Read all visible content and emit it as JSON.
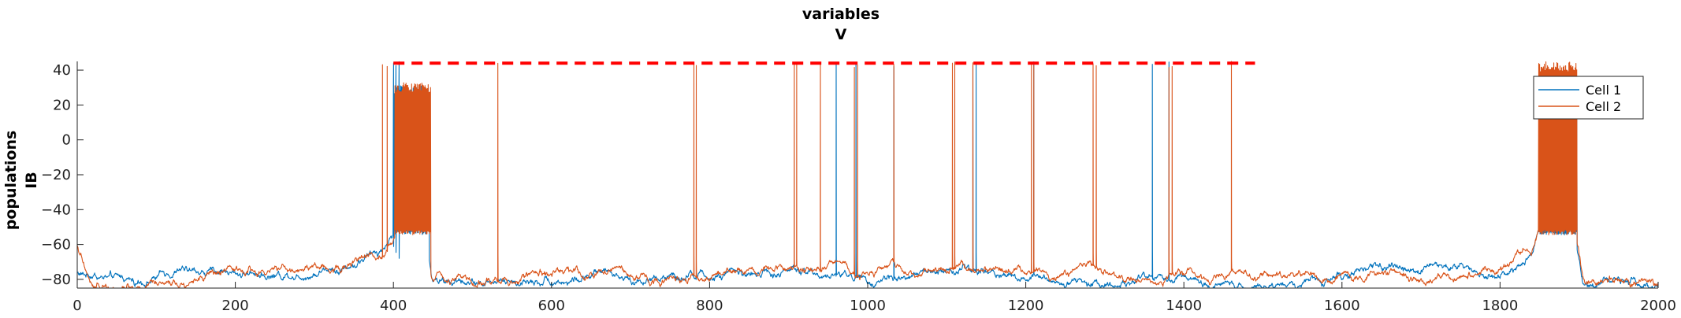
{
  "chart_data": {
    "type": "line",
    "title": [
      "variables",
      "V"
    ],
    "ylabel": [
      "populations",
      "IB"
    ],
    "xlabel": "",
    "xlim": [
      0,
      2000
    ],
    "ylim": [
      -85,
      45
    ],
    "xticks": [
      0,
      200,
      400,
      600,
      800,
      1000,
      1200,
      1400,
      1600,
      1800,
      2000
    ],
    "yticks": [
      -80,
      -60,
      -40,
      -20,
      0,
      20,
      40
    ],
    "grid": false,
    "legend_position": "top-right",
    "threshold_line": {
      "y": 44,
      "x_start": 400,
      "x_end": 1490,
      "color": "#ff0000",
      "style": "dashed"
    },
    "series": [
      {
        "name": "Cell 1",
        "color": "#0072bd",
        "baseline": [
          [
            0,
            -76
          ],
          [
            50,
            -80
          ],
          [
            100,
            -78
          ],
          [
            200,
            -77
          ],
          [
            300,
            -74
          ],
          [
            350,
            -70
          ],
          [
            385,
            -65
          ],
          [
            400,
            -55
          ],
          [
            440,
            -53
          ],
          [
            450,
            -80
          ],
          [
            500,
            -82
          ],
          [
            600,
            -80
          ],
          [
            700,
            -79
          ],
          [
            800,
            -79
          ],
          [
            900,
            -76
          ],
          [
            1000,
            -78
          ],
          [
            1100,
            -76
          ],
          [
            1200,
            -77
          ],
          [
            1300,
            -79
          ],
          [
            1400,
            -80
          ],
          [
            1500,
            -79
          ],
          [
            1600,
            -78
          ],
          [
            1700,
            -74
          ],
          [
            1800,
            -74
          ],
          [
            1840,
            -70
          ],
          [
            1850,
            -55
          ],
          [
            1895,
            -53
          ],
          [
            1905,
            -80
          ],
          [
            1950,
            -82
          ],
          [
            2000,
            -84
          ]
        ],
        "spikes": [
          400,
          403,
          407,
          960,
          985,
          1033,
          1133,
          1137,
          1210,
          1360,
          1381
        ],
        "bursts": [
          [
            400,
            445,
            28
          ],
          [
            1850,
            1897,
            30
          ]
        ]
      },
      {
        "name": "Cell 2",
        "color": "#d95319",
        "baseline": [
          [
            0,
            -60
          ],
          [
            20,
            -84
          ],
          [
            60,
            -78
          ],
          [
            100,
            -80
          ],
          [
            200,
            -79
          ],
          [
            300,
            -76
          ],
          [
            350,
            -72
          ],
          [
            385,
            -66
          ],
          [
            400,
            -55
          ],
          [
            440,
            -53
          ],
          [
            450,
            -79
          ],
          [
            500,
            -80
          ],
          [
            600,
            -79
          ],
          [
            700,
            -78
          ],
          [
            800,
            -78
          ],
          [
            900,
            -74
          ],
          [
            1000,
            -76
          ],
          [
            1100,
            -75
          ],
          [
            1200,
            -76
          ],
          [
            1300,
            -78
          ],
          [
            1400,
            -79
          ],
          [
            1500,
            -79
          ],
          [
            1600,
            -79
          ],
          [
            1700,
            -76
          ],
          [
            1800,
            -74
          ],
          [
            1840,
            -68
          ],
          [
            1850,
            -55
          ],
          [
            1895,
            -53
          ],
          [
            1905,
            -80
          ],
          [
            1950,
            -83
          ],
          [
            2000,
            -84
          ]
        ],
        "spikes": [
          386,
          392,
          532,
          780,
          783,
          907,
          910,
          940,
          983,
          987,
          1033,
          1107,
          1110,
          1133,
          1207,
          1210,
          1285,
          1289,
          1381,
          1385,
          1460
        ],
        "bursts": [
          [
            402,
            447,
            30
          ],
          [
            1849,
            1897,
            42
          ]
        ]
      }
    ]
  }
}
